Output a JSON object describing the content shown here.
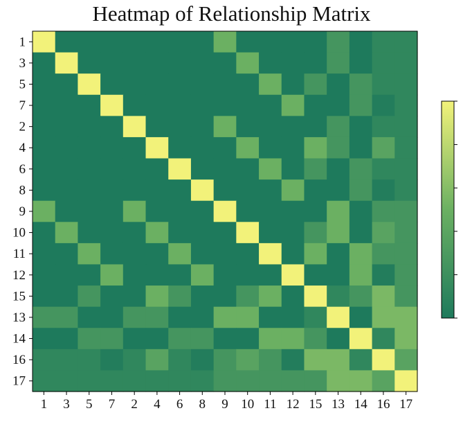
{
  "chart_data": {
    "type": "heatmap",
    "title": "Heatmap of Relationship Matrix",
    "xlabel": "",
    "ylabel": "",
    "row_labels": [
      "1",
      "3",
      "5",
      "7",
      "2",
      "4",
      "6",
      "8",
      "9",
      "10",
      "11",
      "12",
      "15",
      "13",
      "14",
      "16",
      "17"
    ],
    "col_labels": [
      "1",
      "3",
      "5",
      "7",
      "2",
      "4",
      "6",
      "8",
      "9",
      "10",
      "11",
      "12",
      "15",
      "13",
      "14",
      "16",
      "17"
    ],
    "value_range": [
      0,
      1
    ],
    "colormap": {
      "low": "#1e7a5c",
      "mid": "#6bb062",
      "high": "#f2f27a"
    },
    "colorbar": {
      "position": "right",
      "tick_labels_visible": false
    },
    "values": [
      [
        1.0,
        0.0,
        0.0,
        0.0,
        0.0,
        0.0,
        0.0,
        0.0,
        0.5,
        0.0,
        0.0,
        0.0,
        0.0,
        0.25,
        0.0,
        0.12,
        0.12
      ],
      [
        0.0,
        1.0,
        0.0,
        0.0,
        0.0,
        0.0,
        0.0,
        0.0,
        0.0,
        0.5,
        0.0,
        0.0,
        0.0,
        0.25,
        0.0,
        0.12,
        0.12
      ],
      [
        0.0,
        0.0,
        1.0,
        0.0,
        0.0,
        0.0,
        0.0,
        0.0,
        0.0,
        0.0,
        0.5,
        0.0,
        0.25,
        0.0,
        0.25,
        0.12,
        0.12
      ],
      [
        0.0,
        0.0,
        0.0,
        1.0,
        0.0,
        0.0,
        0.0,
        0.0,
        0.0,
        0.0,
        0.0,
        0.5,
        0.0,
        0.0,
        0.25,
        0.03,
        0.12
      ],
      [
        0.0,
        0.0,
        0.0,
        0.0,
        1.0,
        0.0,
        0.0,
        0.0,
        0.5,
        0.0,
        0.0,
        0.0,
        0.0,
        0.25,
        0.0,
        0.12,
        0.12
      ],
      [
        0.0,
        0.0,
        0.0,
        0.0,
        0.0,
        1.0,
        0.0,
        0.0,
        0.0,
        0.5,
        0.0,
        0.0,
        0.5,
        0.25,
        0.0,
        0.38,
        0.12
      ],
      [
        0.0,
        0.0,
        0.0,
        0.0,
        0.0,
        0.0,
        1.0,
        0.0,
        0.0,
        0.0,
        0.5,
        0.0,
        0.25,
        0.0,
        0.25,
        0.12,
        0.12
      ],
      [
        0.0,
        0.0,
        0.0,
        0.0,
        0.0,
        0.0,
        0.0,
        1.0,
        0.0,
        0.0,
        0.0,
        0.5,
        0.0,
        0.0,
        0.25,
        0.03,
        0.12
      ],
      [
        0.5,
        0.0,
        0.0,
        0.0,
        0.5,
        0.0,
        0.0,
        0.0,
        1.0,
        0.0,
        0.0,
        0.0,
        0.0,
        0.5,
        0.0,
        0.25,
        0.25
      ],
      [
        0.0,
        0.5,
        0.0,
        0.0,
        0.0,
        0.5,
        0.0,
        0.0,
        0.0,
        1.0,
        0.0,
        0.0,
        0.25,
        0.5,
        0.0,
        0.38,
        0.25
      ],
      [
        0.0,
        0.0,
        0.5,
        0.0,
        0.0,
        0.0,
        0.5,
        0.0,
        0.0,
        0.0,
        1.0,
        0.0,
        0.5,
        0.0,
        0.5,
        0.25,
        0.25
      ],
      [
        0.0,
        0.0,
        0.0,
        0.5,
        0.0,
        0.0,
        0.0,
        0.5,
        0.0,
        0.0,
        0.0,
        1.0,
        0.0,
        0.0,
        0.5,
        0.03,
        0.25
      ],
      [
        0.0,
        0.0,
        0.25,
        0.0,
        0.0,
        0.5,
        0.25,
        0.0,
        0.0,
        0.25,
        0.5,
        0.0,
        1.0,
        0.12,
        0.25,
        0.56,
        0.25
      ],
      [
        0.25,
        0.25,
        0.0,
        0.0,
        0.25,
        0.25,
        0.0,
        0.0,
        0.5,
        0.5,
        0.0,
        0.0,
        0.12,
        1.0,
        0.0,
        0.56,
        0.56
      ],
      [
        0.0,
        0.0,
        0.25,
        0.25,
        0.0,
        0.0,
        0.25,
        0.25,
        0.0,
        0.0,
        0.5,
        0.5,
        0.25,
        0.0,
        1.0,
        0.12,
        0.56
      ],
      [
        0.12,
        0.12,
        0.12,
        0.03,
        0.12,
        0.38,
        0.12,
        0.03,
        0.25,
        0.38,
        0.25,
        0.03,
        0.56,
        0.56,
        0.12,
        1.0,
        0.38
      ],
      [
        0.12,
        0.12,
        0.12,
        0.12,
        0.12,
        0.12,
        0.12,
        0.12,
        0.25,
        0.25,
        0.25,
        0.25,
        0.25,
        0.56,
        0.56,
        0.38,
        1.0
      ]
    ]
  }
}
